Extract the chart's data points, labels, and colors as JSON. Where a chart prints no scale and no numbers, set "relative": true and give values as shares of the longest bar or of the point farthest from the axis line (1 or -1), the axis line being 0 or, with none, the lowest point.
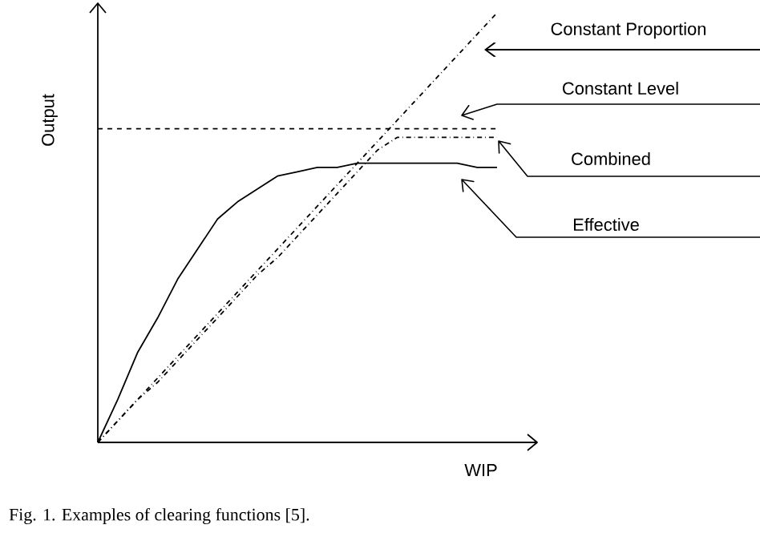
{
  "chart_data": {
    "type": "line",
    "relative": true,
    "xlabel": "WIP",
    "ylabel": "Output",
    "categories": [
      null,
      null,
      null,
      null,
      null,
      null,
      null,
      null,
      null,
      null,
      null,
      null,
      null,
      null,
      null,
      null,
      null,
      null,
      null,
      null,
      null
    ],
    "series": [
      {
        "name": "Constant Proportion",
        "color": "#000000",
        "line_style": "dashdot",
        "values": [
          0,
          0.05,
          0.1,
          0.15,
          0.2,
          0.25,
          0.3,
          0.35,
          0.4,
          0.45,
          0.5,
          0.55,
          0.6,
          0.65,
          0.7,
          0.75,
          0.8,
          0.85,
          0.9,
          0.95,
          1.0
        ]
      },
      {
        "name": "Constant Level",
        "color": "#000000",
        "line_style": "dashed",
        "values": [
          0.73,
          0.73,
          0.73,
          0.73,
          0.73,
          0.73,
          0.73,
          0.73,
          0.73,
          0.73,
          0.73,
          0.73,
          0.73,
          0.73,
          0.73,
          0.73,
          0.73,
          0.73,
          0.73,
          0.73,
          0.73
        ]
      },
      {
        "name": "Combined",
        "color": "#000000",
        "line_style": "dashdot",
        "values": [
          0,
          0.05,
          0.1,
          0.14,
          0.19,
          0.24,
          0.29,
          0.34,
          0.39,
          0.43,
          0.48,
          0.53,
          0.58,
          0.63,
          0.68,
          0.71,
          0.71,
          0.71,
          0.71,
          0.71,
          0.71
        ]
      },
      {
        "name": "Effective",
        "color": "#000000",
        "line_style": "solid",
        "values": [
          0,
          0.1,
          0.21,
          0.29,
          0.38,
          0.45,
          0.52,
          0.56,
          0.59,
          0.62,
          0.63,
          0.64,
          0.64,
          0.65,
          0.65,
          0.65,
          0.65,
          0.65,
          0.65,
          0.64,
          0.64
        ]
      }
    ],
    "annotations": [
      "Fig. 1. Examples of clearing functions [5]."
    ]
  }
}
